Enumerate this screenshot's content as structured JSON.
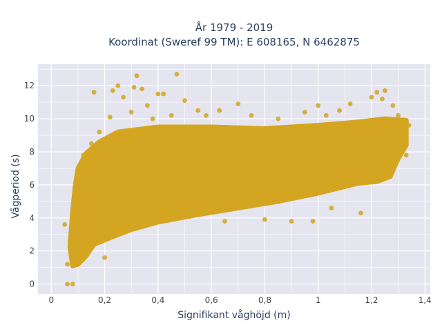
{
  "chart_data": {
    "type": "scatter",
    "title": "År 1979 - 2019",
    "subtitle": "Koordinat (Sweref 99 TM): E 608165, N 6462875",
    "xlabel": "Signifikant våghöjd (m)",
    "ylabel": "Vågperiod (s)",
    "xlim": [
      -0.05,
      1.42
    ],
    "ylim": [
      -0.6,
      13.3
    ],
    "x_ticks": [
      0,
      0.2,
      0.4,
      0.6,
      0.8,
      1,
      1.2,
      1.4
    ],
    "x_tick_labels": [
      "0",
      "0,2",
      "0,4",
      "0,6",
      "0,8",
      "1",
      "1,2",
      "1,4"
    ],
    "y_ticks": [
      0,
      2,
      4,
      6,
      8,
      10,
      12
    ],
    "y_tick_labels": [
      "0",
      "2",
      "4",
      "6",
      "8",
      "10",
      "12"
    ],
    "grid": true,
    "marker_color": "#D4A520",
    "plot_background": "#E5E5EF",
    "series": [
      {
        "points": [
          [
            0.06,
            0
          ],
          [
            0.08,
            0
          ],
          [
            0.05,
            3.6
          ],
          [
            0.06,
            1.2
          ],
          [
            0.07,
            2.6
          ],
          [
            0.1,
            1.2
          ],
          [
            0.12,
            2.0
          ],
          [
            0.1,
            6.2
          ],
          [
            0.12,
            7.8
          ],
          [
            0.15,
            8.5
          ],
          [
            0.16,
            11.6
          ],
          [
            0.18,
            9.2
          ],
          [
            0.2,
            1.6
          ],
          [
            0.22,
            10.1
          ],
          [
            0.23,
            11.7
          ],
          [
            0.25,
            12.0
          ],
          [
            0.27,
            11.3
          ],
          [
            0.3,
            10.4
          ],
          [
            0.31,
            11.9
          ],
          [
            0.32,
            12.6
          ],
          [
            0.34,
            11.8
          ],
          [
            0.36,
            10.8
          ],
          [
            0.38,
            10.0
          ],
          [
            0.4,
            11.5
          ],
          [
            0.42,
            11.5
          ],
          [
            0.45,
            10.2
          ],
          [
            0.47,
            12.7
          ],
          [
            0.5,
            11.1
          ],
          [
            0.55,
            10.5
          ],
          [
            0.58,
            10.2
          ],
          [
            0.63,
            10.5
          ],
          [
            0.65,
            3.8
          ],
          [
            0.7,
            10.9
          ],
          [
            0.75,
            10.2
          ],
          [
            0.8,
            3.9
          ],
          [
            0.85,
            10.0
          ],
          [
            0.9,
            3.8
          ],
          [
            0.95,
            10.4
          ],
          [
            0.98,
            3.8
          ],
          [
            1.0,
            10.8
          ],
          [
            1.03,
            10.2
          ],
          [
            1.05,
            4.6
          ],
          [
            1.08,
            10.5
          ],
          [
            1.12,
            10.9
          ],
          [
            1.16,
            4.3
          ],
          [
            1.2,
            11.3
          ],
          [
            1.22,
            11.6
          ],
          [
            1.24,
            11.2
          ],
          [
            1.25,
            11.7
          ],
          [
            1.28,
            10.8
          ],
          [
            1.3,
            10.2
          ],
          [
            1.32,
            9.8
          ],
          [
            1.34,
            9.6
          ],
          [
            1.33,
            7.8
          ],
          [
            1.3,
            7.9
          ]
        ]
      }
    ]
  }
}
